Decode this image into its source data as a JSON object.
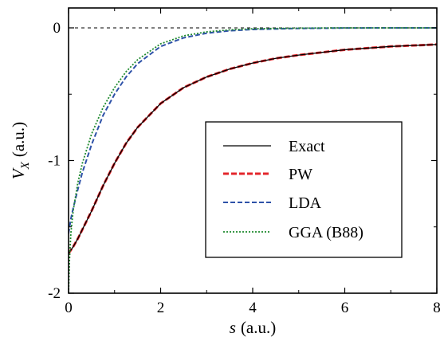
{
  "chart_data": {
    "type": "line",
    "title": "",
    "xlabel": "s (a.u.)",
    "ylabel": "V_X (a.u.)",
    "xlim": [
      0,
      8
    ],
    "ylim": [
      -2,
      0.15
    ],
    "x_ticks": [
      "0",
      "2",
      "4",
      "6",
      "8"
    ],
    "y_ticks": [
      "-2",
      "-1",
      "0"
    ],
    "x_tick_values": [
      0,
      2,
      4,
      6,
      8
    ],
    "y_tick_values": [
      -2,
      -1,
      0
    ],
    "reference_line": {
      "y": 0,
      "style": "dashed",
      "color": "#000000"
    },
    "grid": false,
    "legend_position": "center-right",
    "series": [
      {
        "name": "Exact",
        "color": "#000000",
        "style": "solid",
        "x": [
          0,
          0.1,
          0.2,
          0.3,
          0.5,
          0.75,
          1,
          1.25,
          1.5,
          2,
          2.5,
          3,
          3.5,
          4,
          4.5,
          5,
          6,
          7,
          8
        ],
        "y": [
          -1.7,
          -1.65,
          -1.59,
          -1.52,
          -1.38,
          -1.19,
          -1.02,
          -0.87,
          -0.75,
          -0.57,
          -0.45,
          -0.37,
          -0.31,
          -0.265,
          -0.23,
          -0.205,
          -0.165,
          -0.14,
          -0.125
        ]
      },
      {
        "name": "PW",
        "color": "#e3262b",
        "style": "dashed",
        "x": [
          0,
          0.1,
          0.2,
          0.3,
          0.5,
          0.75,
          1,
          1.25,
          1.5,
          2,
          2.5,
          3,
          3.5,
          4,
          4.5,
          5,
          6,
          7,
          8
        ],
        "y": [
          -1.7,
          -1.65,
          -1.59,
          -1.52,
          -1.38,
          -1.19,
          -1.02,
          -0.87,
          -0.75,
          -0.57,
          -0.45,
          -0.37,
          -0.31,
          -0.265,
          -0.23,
          -0.205,
          -0.165,
          -0.14,
          -0.125
        ]
      },
      {
        "name": "LDA",
        "color": "#2e52a8",
        "style": "dashed",
        "x": [
          0,
          0.05,
          0.1,
          0.2,
          0.3,
          0.5,
          0.75,
          1,
          1.25,
          1.5,
          2,
          2.5,
          3,
          3.5,
          4,
          5,
          6,
          7,
          8
        ],
        "y": [
          -1.55,
          -1.44,
          -1.36,
          -1.22,
          -1.09,
          -0.88,
          -0.66,
          -0.5,
          -0.37,
          -0.27,
          -0.14,
          -0.075,
          -0.04,
          -0.022,
          -0.012,
          -0.004,
          -0.001,
          0,
          0
        ]
      },
      {
        "name": "GGA (B88)",
        "color": "#1f8a2e",
        "style": "dotted",
        "x": [
          0,
          0.02,
          0.05,
          0.1,
          0.2,
          0.3,
          0.5,
          0.75,
          1,
          1.25,
          1.5,
          2,
          2.5,
          3,
          3.5,
          4,
          5,
          6,
          7,
          8
        ],
        "y": [
          -2.0,
          -1.75,
          -1.55,
          -1.38,
          -1.17,
          -1.02,
          -0.8,
          -0.6,
          -0.45,
          -0.33,
          -0.24,
          -0.12,
          -0.06,
          -0.03,
          -0.015,
          -0.007,
          -0.002,
          0,
          0,
          0
        ]
      }
    ]
  }
}
